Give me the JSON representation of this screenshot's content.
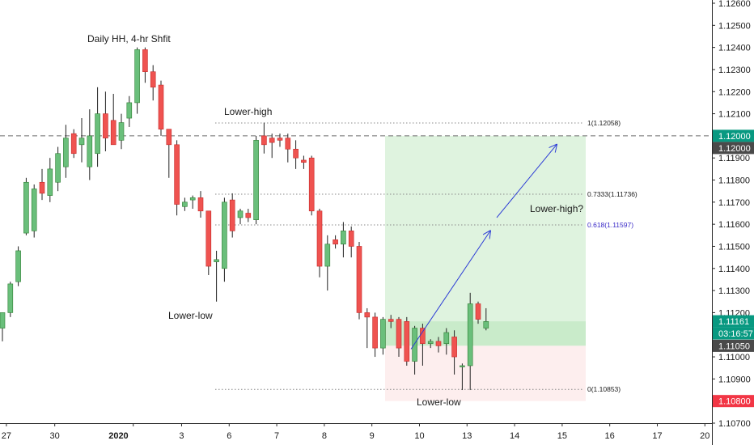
{
  "chart_data": {
    "type": "candlestick",
    "y_axis": {
      "ticks": [
        "1.12600",
        "1.12500",
        "1.12400",
        "1.12300",
        "1.12200",
        "1.12100",
        "1.12000",
        "1.11900",
        "1.11800",
        "1.11700",
        "1.11600",
        "1.11500",
        "1.11400",
        "1.11300",
        "1.11200",
        "1.11100",
        "1.11000",
        "1.10900",
        "1.10800",
        "1.10700"
      ]
    },
    "x_axis": {
      "ticks": [
        {
          "label": "27",
          "bar": 0.5
        },
        {
          "label": "30",
          "bar": 6.6
        },
        {
          "label": "2020",
          "bar": 16.5
        },
        {
          "label": "3",
          "bar": 22.6
        },
        {
          "label": "6",
          "bar": 28.6
        },
        {
          "label": "7",
          "bar": 34.6
        },
        {
          "label": "8",
          "bar": 40.6
        },
        {
          "label": "9",
          "bar": 46.6
        },
        {
          "label": "10",
          "bar": 52.6
        },
        {
          "label": "13",
          "bar": 58.6
        },
        {
          "label": "14",
          "bar": 64.6
        },
        {
          "label": "15",
          "bar": 70.6
        },
        {
          "label": "16",
          "bar": 76.6
        },
        {
          "label": "17",
          "bar": 82.6
        },
        {
          "label": "20",
          "bar": 88.6
        }
      ]
    },
    "candles": [
      {
        "o": 1.1113,
        "h": 1.112,
        "l": 1.1107,
        "c": 1.112
      },
      {
        "o": 1.112,
        "h": 1.1134,
        "l": 1.1118,
        "c": 1.1133
      },
      {
        "o": 1.1134,
        "h": 1.115,
        "l": 1.1132,
        "c": 1.1148
      },
      {
        "o": 1.1156,
        "h": 1.1181,
        "l": 1.1155,
        "c": 1.1179
      },
      {
        "o": 1.1157,
        "h": 1.1178,
        "l": 1.1154,
        "c": 1.1176
      },
      {
        "o": 1.1179,
        "h": 1.1185,
        "l": 1.1171,
        "c": 1.1174
      },
      {
        "o": 1.1173,
        "h": 1.119,
        "l": 1.117,
        "c": 1.1185
      },
      {
        "o": 1.1179,
        "h": 1.1195,
        "l": 1.1175,
        "c": 1.1192
      },
      {
        "o": 1.1186,
        "h": 1.1205,
        "l": 1.1181,
        "c": 1.1199
      },
      {
        "o": 1.1201,
        "h": 1.1203,
        "l": 1.119,
        "c": 1.1192
      },
      {
        "o": 1.1196,
        "h": 1.1208,
        "l": 1.1188,
        "c": 1.1199
      },
      {
        "o": 1.1186,
        "h": 1.1212,
        "l": 1.118,
        "c": 1.12
      },
      {
        "o": 1.1192,
        "h": 1.1222,
        "l": 1.1186,
        "c": 1.121
      },
      {
        "o": 1.121,
        "h": 1.122,
        "l": 1.1193,
        "c": 1.1199
      },
      {
        "o": 1.1207,
        "h": 1.1219,
        "l": 1.1196,
        "c": 1.1196
      },
      {
        "o": 1.1198,
        "h": 1.121,
        "l": 1.1194,
        "c": 1.1206
      },
      {
        "o": 1.1208,
        "h": 1.1218,
        "l": 1.1204,
        "c": 1.1215
      },
      {
        "o": 1.1215,
        "h": 1.124,
        "l": 1.121,
        "c": 1.1239
      },
      {
        "o": 1.1239,
        "h": 1.124,
        "l": 1.1224,
        "c": 1.1229
      },
      {
        "o": 1.1229,
        "h": 1.1232,
        "l": 1.1216,
        "c": 1.1222
      },
      {
        "o": 1.1223,
        "h": 1.1225,
        "l": 1.12,
        "c": 1.1203
      },
      {
        "o": 1.1203,
        "h": 1.1203,
        "l": 1.1181,
        "c": 1.1196
      },
      {
        "o": 1.1196,
        "h": 1.1198,
        "l": 1.1164,
        "c": 1.1169
      },
      {
        "o": 1.1168,
        "h": 1.1172,
        "l": 1.1166,
        "c": 1.117
      },
      {
        "o": 1.1171,
        "h": 1.1173,
        "l": 1.1167,
        "c": 1.1172
      },
      {
        "o": 1.1172,
        "h": 1.1175,
        "l": 1.1163,
        "c": 1.1166
      },
      {
        "o": 1.1166,
        "h": 1.1166,
        "l": 1.1137,
        "c": 1.1141
      },
      {
        "o": 1.1143,
        "h": 1.1148,
        "l": 1.1125,
        "c": 1.1144
      },
      {
        "o": 1.114,
        "h": 1.1172,
        "l": 1.1134,
        "c": 1.117
      },
      {
        "o": 1.1171,
        "h": 1.1174,
        "l": 1.1154,
        "c": 1.1157
      },
      {
        "o": 1.1163,
        "h": 1.1167,
        "l": 1.116,
        "c": 1.1166
      },
      {
        "o": 1.1165,
        "h": 1.1167,
        "l": 1.1161,
        "c": 1.1163
      },
      {
        "o": 1.1162,
        "h": 1.12,
        "l": 1.116,
        "c": 1.1198
      },
      {
        "o": 1.12,
        "h": 1.1206,
        "l": 1.1192,
        "c": 1.1196
      },
      {
        "o": 1.1199,
        "h": 1.1201,
        "l": 1.119,
        "c": 1.1197
      },
      {
        "o": 1.1199,
        "h": 1.1201,
        "l": 1.1195,
        "c": 1.1198
      },
      {
        "o": 1.1199,
        "h": 1.1201,
        "l": 1.1188,
        "c": 1.1194
      },
      {
        "o": 1.1194,
        "h": 1.1198,
        "l": 1.1185,
        "c": 1.119
      },
      {
        "o": 1.1189,
        "h": 1.1191,
        "l": 1.1185,
        "c": 1.1188
      },
      {
        "o": 1.119,
        "h": 1.1191,
        "l": 1.1164,
        "c": 1.1166
      },
      {
        "o": 1.1166,
        "h": 1.1167,
        "l": 1.1136,
        "c": 1.1141
      },
      {
        "o": 1.1141,
        "h": 1.1155,
        "l": 1.113,
        "c": 1.1151
      },
      {
        "o": 1.1153,
        "h": 1.1155,
        "l": 1.1149,
        "c": 1.1151
      },
      {
        "o": 1.1151,
        "h": 1.1161,
        "l": 1.1145,
        "c": 1.1157
      },
      {
        "o": 1.1157,
        "h": 1.1159,
        "l": 1.1145,
        "c": 1.115
      },
      {
        "o": 1.115,
        "h": 1.1152,
        "l": 1.1117,
        "c": 1.112
      },
      {
        "o": 1.112,
        "h": 1.1122,
        "l": 1.1104,
        "c": 1.1118
      },
      {
        "o": 1.1118,
        "h": 1.112,
        "l": 1.11,
        "c": 1.1104
      },
      {
        "o": 1.1104,
        "h": 1.1118,
        "l": 1.1101,
        "c": 1.1117
      },
      {
        "o": 1.1117,
        "h": 1.1119,
        "l": 1.1113,
        "c": 1.1116
      },
      {
        "o": 1.1117,
        "h": 1.1118,
        "l": 1.11,
        "c": 1.1104
      },
      {
        "o": 1.1116,
        "h": 1.1118,
        "l": 1.1096,
        "c": 1.1098
      },
      {
        "o": 1.1098,
        "h": 1.1114,
        "l": 1.1092,
        "c": 1.1113
      },
      {
        "o": 1.1113,
        "h": 1.1115,
        "l": 1.1096,
        "c": 1.1106
      },
      {
        "o": 1.1106,
        "h": 1.1108,
        "l": 1.1104,
        "c": 1.1107
      },
      {
        "o": 1.1107,
        "h": 1.1109,
        "l": 1.1102,
        "c": 1.1105
      },
      {
        "o": 1.1106,
        "h": 1.1113,
        "l": 1.1101,
        "c": 1.1111
      },
      {
        "o": 1.1109,
        "h": 1.1112,
        "l": 1.1092,
        "c": 1.11
      },
      {
        "o": 1.1096,
        "h": 1.1097,
        "l": 1.1085,
        "c": 1.1096
      },
      {
        "o": 1.1096,
        "h": 1.1129,
        "l": 1.1085,
        "c": 1.1124
      },
      {
        "o": 1.1124,
        "h": 1.1125,
        "l": 1.1115,
        "c": 1.1117
      },
      {
        "o": 1.1113,
        "h": 1.1122,
        "l": 1.1112,
        "c": 1.1116
      }
    ],
    "annotations": {
      "daily_hh": "Daily HH, 4-hr Shfit",
      "lower_high": "Lower-high",
      "lower_low_left": "Lower-low",
      "lower_low_right": "Lower-low",
      "lower_high_q": "Lower-high?"
    },
    "fib_levels": [
      {
        "label": "1(1.12058)",
        "value": 1.12058
      },
      {
        "label": "0.7333(1.11736)",
        "value": 1.11736
      },
      {
        "label": "0.618(1.11597)",
        "value": 1.11597
      },
      {
        "label": "0(1.10853)",
        "value": 1.10853
      }
    ],
    "position": {
      "entry": 1.11161,
      "stop_zone_low": 1.108,
      "target": 1.12,
      "stop_zone_top": 1.1105
    },
    "horizontal_line": 1.12,
    "price_badges": [
      {
        "label": "1.12000",
        "value": 1.12,
        "color": "#089981"
      },
      {
        "label": "1.12000",
        "value": 1.12,
        "color": "#4a4a4a",
        "second": true
      },
      {
        "label": "1.11161",
        "value": 1.11161,
        "color": "#089981"
      },
      {
        "label": "03:16:57",
        "value": 1.11161,
        "color": "#089981",
        "timer": true
      },
      {
        "label": "1.11050",
        "value": 1.1105,
        "color": "#4a4a4a"
      },
      {
        "label": "1.10800",
        "value": 1.108,
        "color": "#f23645"
      }
    ],
    "colors": {
      "up": "#6abf7b",
      "down": "#ef5350",
      "up_border": "#2e7d32",
      "down_border": "#c62828",
      "profit_zone": "#dff3df",
      "entry_zone": "#c9ebca",
      "loss_zone": "#fdeeee",
      "arrow": "#2a3ad6",
      "fib_0618": "#3a2ac7"
    }
  }
}
